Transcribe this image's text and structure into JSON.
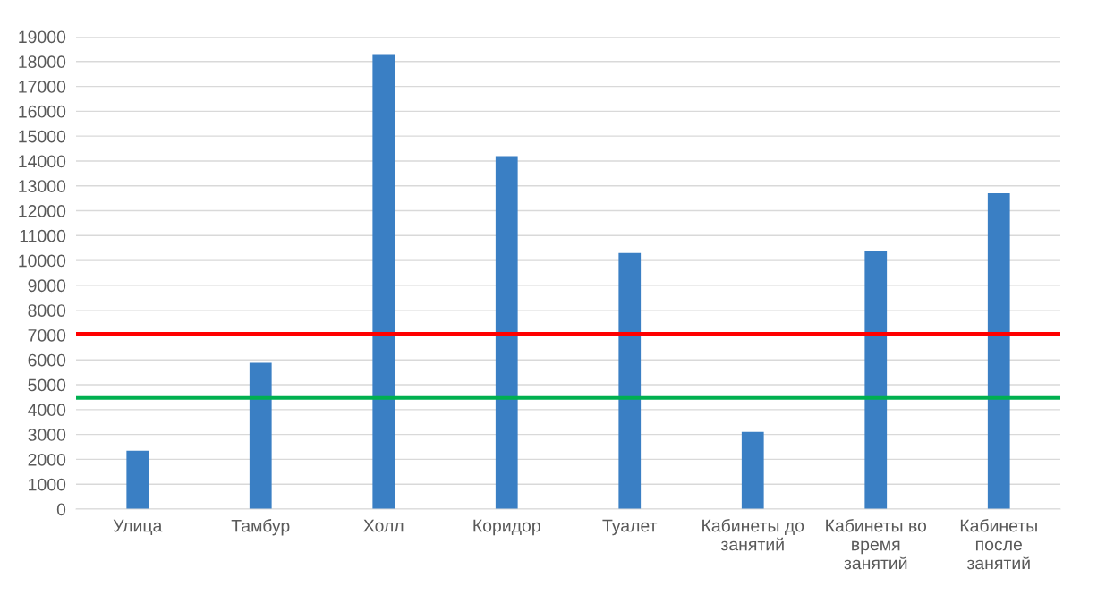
{
  "chart_data": {
    "type": "bar",
    "categories": [
      "Улица",
      "Тамбур",
      "Холл",
      "Коридор",
      "Туалет",
      "Кабинеты до\nзанятий",
      "Кабинеты во\nвремя\nзанятий",
      "Кабинеты\nпосле\nзанятий"
    ],
    "values": [
      2350,
      5880,
      18300,
      14200,
      10300,
      3100,
      10380,
      12700
    ],
    "color": "#3a7fc4",
    "ylim": [
      0,
      19000
    ],
    "yticks": [
      0,
      1000,
      2000,
      3000,
      4000,
      5000,
      6000,
      7000,
      8000,
      9000,
      10000,
      11000,
      12000,
      13000,
      14000,
      15000,
      16000,
      17000,
      18000,
      19000
    ],
    "grid": "y",
    "legend": false,
    "ref_lines": [
      {
        "axis": "y",
        "value": 7050,
        "color": "#ff0000"
      },
      {
        "axis": "y",
        "value": 4470,
        "color": "#00b050"
      }
    ]
  }
}
